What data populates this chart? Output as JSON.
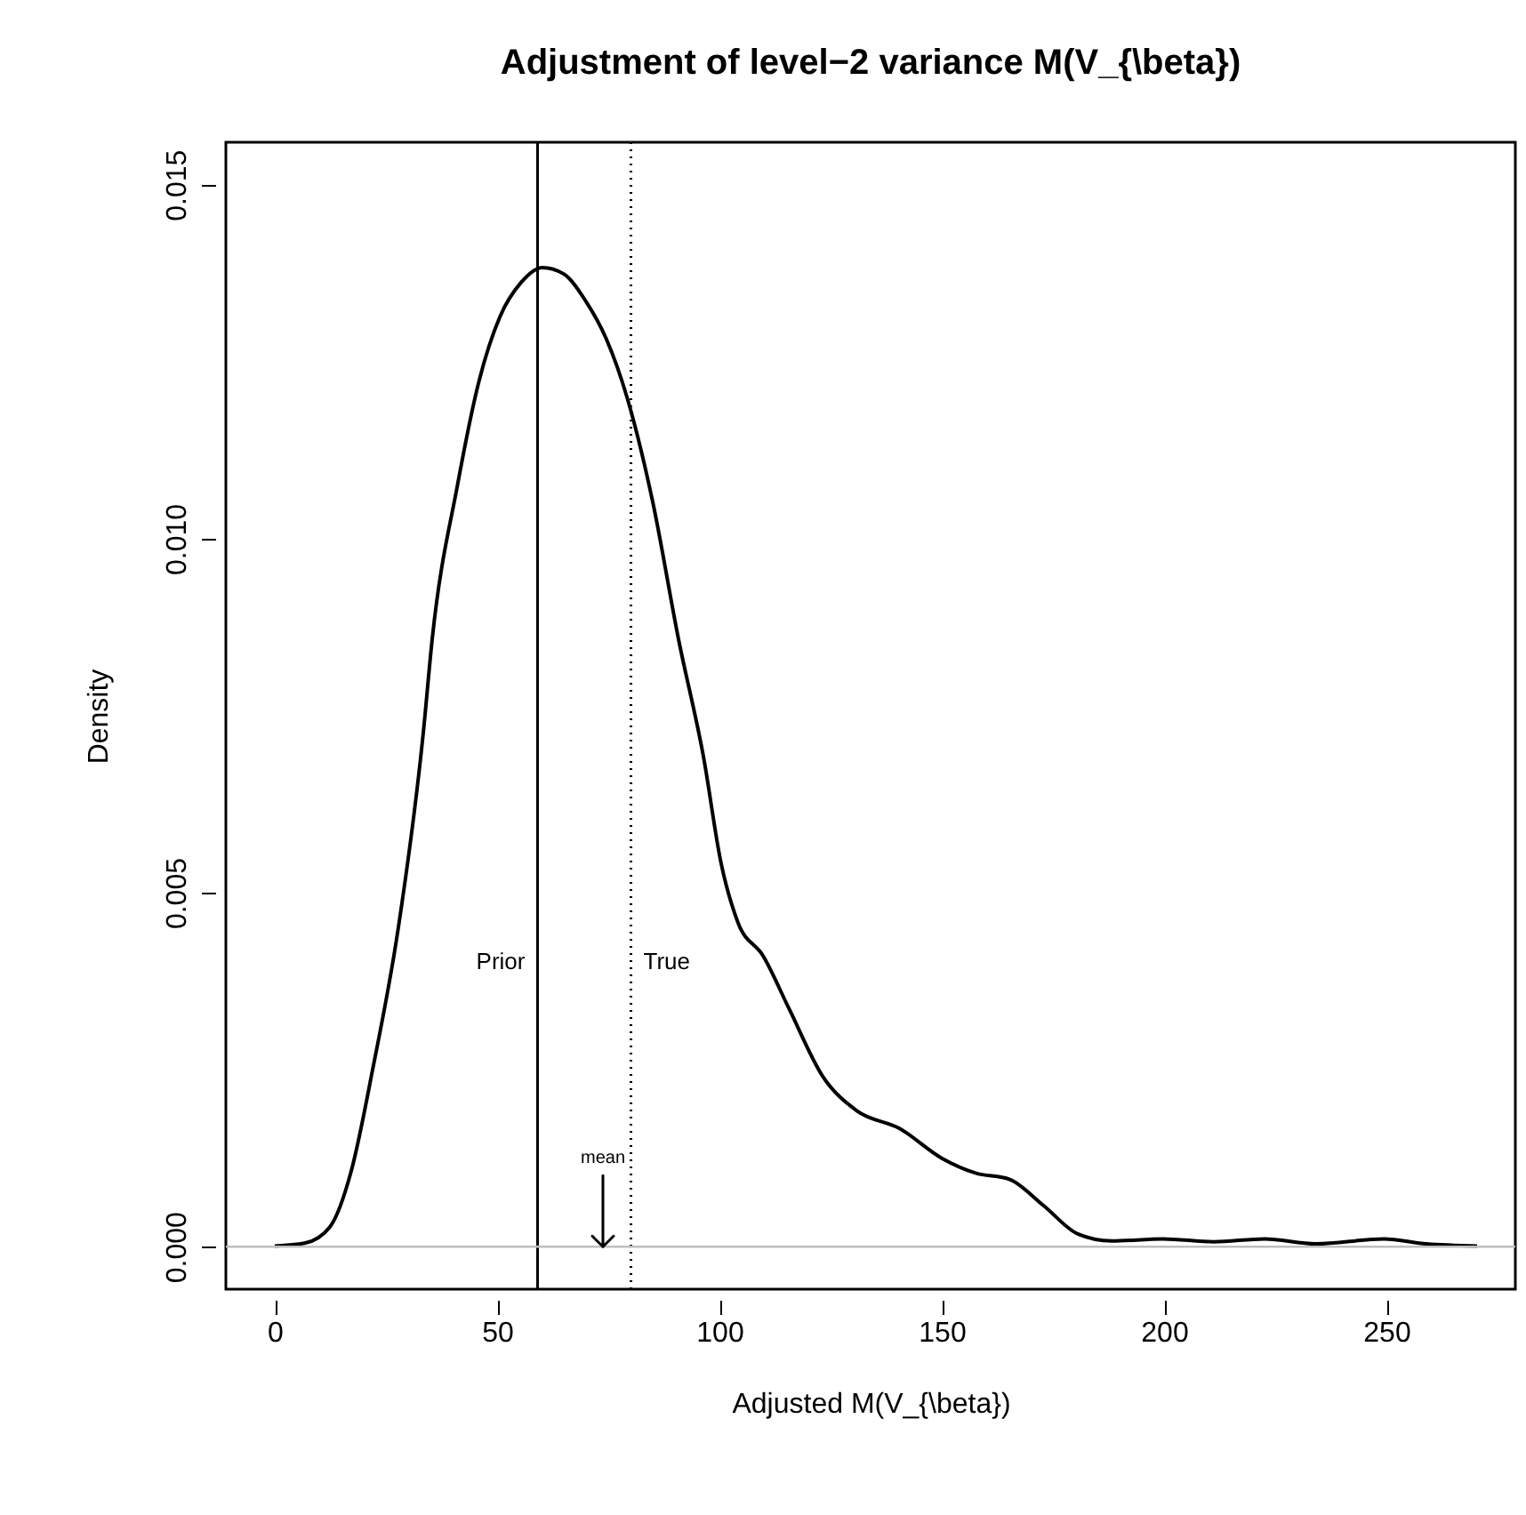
{
  "chart_data": {
    "type": "line",
    "title": "Adjustment of level−2 variance M(V_{\\beta})",
    "xlabel": "Adjusted M(V_{\\beta})",
    "ylabel": "Density",
    "x": [
      0,
      6.7,
      12.4,
      17.2,
      22.0,
      27.7,
      33.4,
      35.4,
      41.1,
      45.9,
      50.6,
      55.4,
      60.2,
      65.0,
      69.8,
      74.5,
      79.3,
      85.0,
      90.8,
      96.5,
      100.3,
      104.1,
      109.9,
      115.6,
      123.3,
      130.9,
      140.5,
      150.0,
      157.6,
      165.3,
      172.9,
      180.6,
      188.2,
      199.7,
      211.2,
      222.6,
      234.1,
      249.4,
      259.0,
      270.4
    ],
    "series": [
      {
        "color": "#000000",
        "values": [
          1e-05,
          5e-05,
          0.00028,
          0.00107,
          0.0025,
          0.00447,
          0.00726,
          0.00858,
          0.01076,
          0.01222,
          0.01313,
          0.01362,
          0.01383,
          0.01374,
          0.01337,
          0.01283,
          0.01198,
          0.01052,
          0.00858,
          0.00689,
          0.00544,
          0.00459,
          0.0041,
          0.00337,
          0.0024,
          0.00192,
          0.00167,
          0.00125,
          0.00104,
          0.00095,
          0.00058,
          0.00018,
          8e-05,
          0.00011,
          7e-05,
          0.00011,
          4e-05,
          0.00011,
          4e-05,
          1e-05
        ]
      }
    ],
    "xlim": [
      -11,
      279
    ],
    "xticks": [
      0,
      50,
      100,
      150,
      200,
      250
    ],
    "ylim": [
      -0.0006,
      0.0156
    ],
    "yticks": [
      {
        "value": 0,
        "label": "0.000"
      },
      {
        "value": 0.005,
        "label": "0.005"
      },
      {
        "value": 0.01,
        "label": "0.010"
      },
      {
        "value": 0.015,
        "label": "0.015"
      }
    ],
    "ref_lines": [
      {
        "axis": "x",
        "value": 59.1,
        "label": "Prior",
        "color": "#000000",
        "line_style": "solid"
      },
      {
        "axis": "x",
        "value": 80.1,
        "label": "True",
        "color": "#000000",
        "line_style": "dotted"
      },
      {
        "axis": "y",
        "value": 0,
        "color": "#bebebe",
        "line_style": "solid"
      }
    ],
    "annotations": [
      {
        "text": "mean",
        "x": 73.8,
        "y": 0
      }
    ],
    "grid": false,
    "marker": "none",
    "line_style": "solid"
  }
}
